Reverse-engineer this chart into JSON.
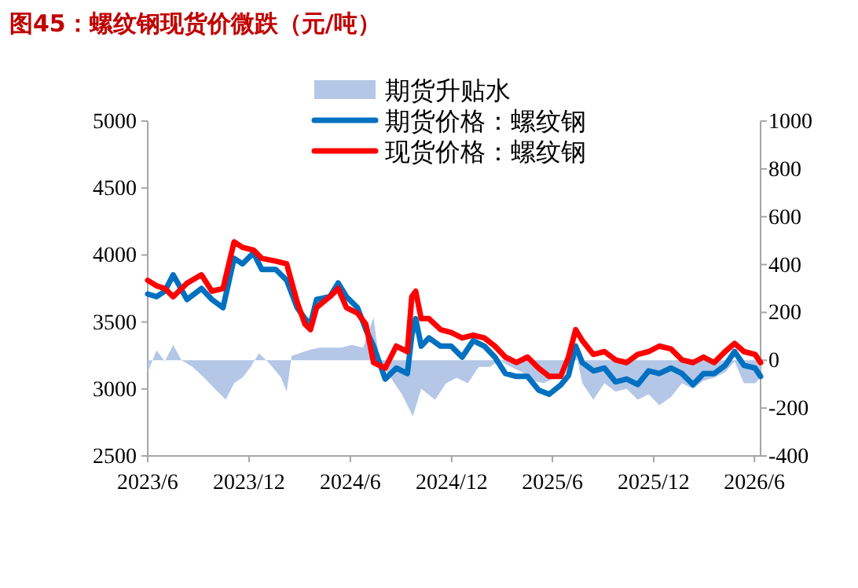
{
  "chart_data": {
    "type": "line",
    "title": "图45：螺纹钢现货价微跌（元/吨）",
    "x": [
      "2023-06-01",
      "2023-06-17",
      "2023-07-02",
      "2023-07-17",
      "2023-08-11",
      "2023-09-06",
      "2023-09-25",
      "2023-10-15",
      "2023-11-04",
      "2023-11-19",
      "2023-12-09",
      "2023-12-24",
      "2024-01-18",
      "2024-02-07",
      "2024-02-26",
      "2024-03-11",
      "2024-03-21",
      "2024-04-01",
      "2024-04-25",
      "2024-05-10",
      "2024-05-25",
      "2024-06-14",
      "2024-06-29",
      "2024-07-13",
      "2024-08-03",
      "2024-08-23",
      "2024-09-12",
      "2024-09-20",
      "2024-09-27",
      "2024-10-07",
      "2024-10-21",
      "2024-11-11",
      "2024-11-30",
      "2024-12-20",
      "2025-01-09",
      "2025-01-29",
      "2025-02-17",
      "2025-03-08",
      "2025-03-28",
      "2025-04-17",
      "2025-05-07",
      "2025-05-26",
      "2025-06-16",
      "2025-06-30",
      "2025-07-13",
      "2025-07-25",
      "2025-08-14",
      "2025-09-03",
      "2025-09-23",
      "2025-10-13",
      "2025-11-02",
      "2025-11-22",
      "2025-12-11",
      "2026-01-01",
      "2026-01-21",
      "2026-02-10",
      "2026-03-01",
      "2026-03-20",
      "2026-04-09",
      "2026-04-26",
      "2026-05-13",
      "2026-06-02",
      "2026-06-12"
    ],
    "series": [
      {
        "name": "期货升贴水",
        "type": "area",
        "axis": "y2",
        "color": "#b4c7e7",
        "x": [
          "2023-06-01",
          "2023-06-17",
          "2023-07-02",
          "2023-07-17",
          "2023-08-01",
          "2023-08-21",
          "2023-09-11",
          "2023-09-30",
          "2023-10-20",
          "2023-11-04",
          "2023-11-19",
          "2023-12-04",
          "2023-12-19",
          "2024-01-08",
          "2024-01-28",
          "2024-02-07",
          "2024-02-16",
          "2024-03-16",
          "2024-04-06",
          "2024-04-25",
          "2024-05-15",
          "2024-06-04",
          "2024-06-24",
          "2024-07-13",
          "2024-07-23",
          "2024-08-13",
          "2024-09-02",
          "2024-09-22",
          "2024-10-07",
          "2024-11-01",
          "2024-11-21",
          "2024-12-10",
          "2024-12-30",
          "2025-01-19",
          "2025-02-08",
          "2025-02-26",
          "2025-03-18",
          "2025-04-07",
          "2025-04-27",
          "2025-05-16",
          "2025-06-06",
          "2025-06-25",
          "2025-07-13",
          "2025-07-25",
          "2025-08-14",
          "2025-09-03",
          "2025-09-23",
          "2025-10-13",
          "2025-11-02",
          "2025-11-22",
          "2025-12-11",
          "2026-01-01",
          "2026-01-21",
          "2026-02-10",
          "2026-03-01",
          "2026-03-20",
          "2026-04-09",
          "2026-04-26",
          "2026-05-13",
          "2026-06-02",
          "2026-06-12"
        ],
        "values": [
          -50,
          41,
          -5,
          64,
          0,
          -28,
          -73,
          -119,
          -165,
          -96,
          -73,
          -28,
          30,
          -16,
          -73,
          -131,
          18,
          41,
          53,
          53,
          53,
          64,
          53,
          179,
          0,
          -73,
          -142,
          -234,
          -119,
          -165,
          -96,
          -73,
          -96,
          -28,
          -28,
          0,
          -28,
          -50,
          -85,
          -96,
          -73,
          -28,
          41,
          -96,
          -165,
          -96,
          -131,
          -119,
          -165,
          -142,
          -188,
          -154,
          -96,
          -119,
          -85,
          -73,
          -50,
          -5,
          -96,
          -96,
          -73
        ]
      },
      {
        "name": "期货价格：螺纹钢",
        "color": "#0070c0",
        "values": [
          3709,
          3689,
          3730,
          3852,
          3668,
          3750,
          3668,
          3607,
          3975,
          3934,
          4016,
          3893,
          3893,
          3811,
          3607,
          3525,
          3484,
          3668,
          3689,
          3791,
          3689,
          3607,
          3443,
          3320,
          3074,
          3156,
          3115,
          3400,
          3525,
          3320,
          3381,
          3320,
          3320,
          3238,
          3361,
          3320,
          3238,
          3115,
          3094,
          3094,
          2992,
          2960,
          3030,
          3100,
          3320,
          3197,
          3135,
          3156,
          3053,
          3074,
          3033,
          3135,
          3115,
          3156,
          3115,
          3033,
          3115,
          3115,
          3176,
          3279,
          3176,
          3156,
          3094
        ]
      },
      {
        "name": "现货价格：螺纹钢",
        "color": "#ff0000",
        "values": [
          3811,
          3770,
          3750,
          3689,
          3790,
          3852,
          3730,
          3750,
          4098,
          4057,
          4037,
          3975,
          3955,
          3934,
          3648,
          3484,
          3443,
          3607,
          3689,
          3750,
          3607,
          3566,
          3484,
          3197,
          3156,
          3320,
          3279,
          3689,
          3730,
          3525,
          3525,
          3443,
          3422,
          3381,
          3402,
          3381,
          3320,
          3238,
          3197,
          3238,
          3156,
          3094,
          3094,
          3238,
          3443,
          3361,
          3258,
          3279,
          3217,
          3197,
          3258,
          3279,
          3320,
          3299,
          3217,
          3197,
          3238,
          3197,
          3279,
          3340,
          3279,
          3258,
          3197
        ]
      }
    ],
    "xlim": [
      "2023-06-01",
      "2026-06-12"
    ],
    "xticks": [
      {
        "value": "2023-06-01",
        "label": "2023/6"
      },
      {
        "value": "2023-12-01",
        "label": "2023/12"
      },
      {
        "value": "2024-06-01",
        "label": "2024/6"
      },
      {
        "value": "2024-12-01",
        "label": "2024/12"
      },
      {
        "value": "2025-06-01",
        "label": "2025/6"
      },
      {
        "value": "2025-12-01",
        "label": "2025/12"
      },
      {
        "value": "2026-06-01",
        "label": "2026/6"
      }
    ],
    "ylim": [
      2500,
      5000
    ],
    "yticks": [
      2500,
      3000,
      3500,
      4000,
      4500,
      5000
    ],
    "y2lim": [
      -400,
      1000
    ],
    "y2ticks": [
      -400,
      -200,
      0,
      200,
      400,
      600,
      800,
      1000
    ],
    "legend": "top"
  }
}
